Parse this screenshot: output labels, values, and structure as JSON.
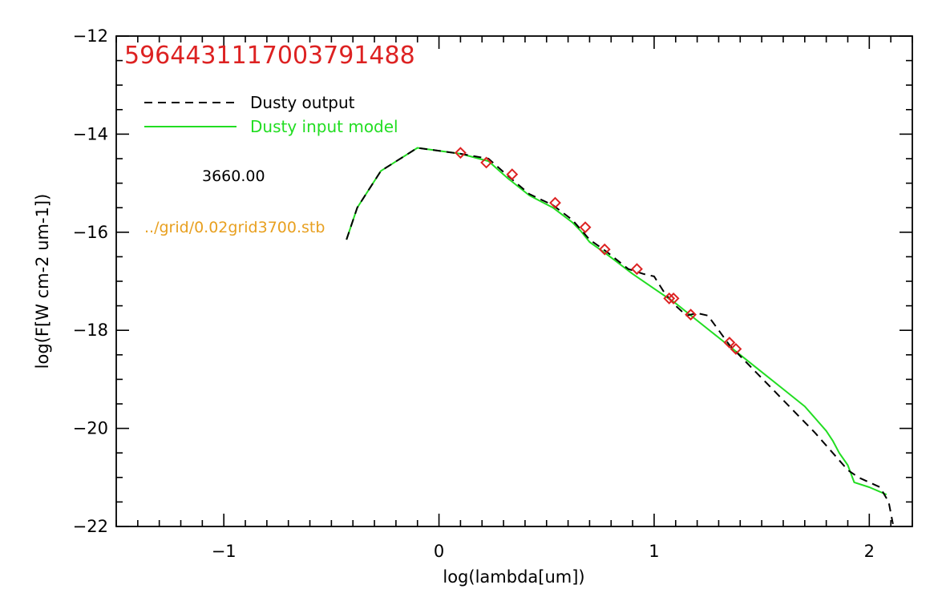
{
  "chart_data": {
    "type": "line",
    "title": "5964431117003791488",
    "xlabel": "log(lambda[um])",
    "ylabel": "log(F[W cm-2 um-1])",
    "xlim": [
      -1.5,
      2.2
    ],
    "ylim": [
      -22,
      -12
    ],
    "xticks": [
      -1,
      0,
      1,
      2
    ],
    "xtick_labels": [
      "−1",
      "0",
      "1",
      "2"
    ],
    "yticks": [
      -22,
      -20,
      -18,
      -16,
      -14,
      -12
    ],
    "ytick_labels": [
      "−22",
      "−20",
      "−18",
      "−16",
      "−14",
      "−12"
    ],
    "grid": false,
    "legend_position": "top-left",
    "legend": [
      {
        "label": "Dusty output",
        "color": "#000000",
        "style": "dashed"
      },
      {
        "label": "Dusty input model",
        "color": "#22dd22",
        "style": "solid"
      }
    ],
    "annotations": [
      {
        "text": "3660.00",
        "color": "#000000"
      },
      {
        "text": "../grid/0.02grid3700.stb",
        "color": "#e8a020"
      }
    ],
    "series": [
      {
        "name": "Dusty input model",
        "color": "#22dd22",
        "style": "solid",
        "x": [
          -0.43,
          -0.38,
          -0.27,
          -0.1,
          0.1,
          0.23,
          0.32,
          0.42,
          0.53,
          0.62,
          0.66,
          0.7,
          0.78,
          0.9,
          1.0,
          1.1,
          1.2,
          1.3,
          1.4,
          1.5,
          1.6,
          1.7,
          1.75,
          1.8,
          1.83,
          1.86,
          1.9,
          1.93,
          2.0,
          2.08
        ],
        "y": [
          -16.15,
          -15.5,
          -14.75,
          -14.28,
          -14.4,
          -14.55,
          -14.9,
          -15.25,
          -15.5,
          -15.8,
          -15.98,
          -16.2,
          -16.45,
          -16.85,
          -17.15,
          -17.45,
          -17.8,
          -18.15,
          -18.5,
          -18.85,
          -19.2,
          -19.55,
          -19.8,
          -20.05,
          -20.25,
          -20.5,
          -20.75,
          -21.1,
          -21.2,
          -21.35
        ]
      },
      {
        "name": "Dusty output",
        "color": "#000000",
        "style": "dashed",
        "x": [
          -0.43,
          -0.38,
          -0.27,
          -0.1,
          0.1,
          0.23,
          0.32,
          0.42,
          0.53,
          0.62,
          0.66,
          0.7,
          0.78,
          0.88,
          0.95,
          1.0,
          1.05,
          1.1,
          1.15,
          1.2,
          1.25,
          1.3,
          1.35,
          1.45,
          1.55,
          1.65,
          1.75,
          1.85,
          1.9,
          1.95,
          2.05,
          2.09,
          2.11
        ],
        "y": [
          -16.15,
          -15.5,
          -14.75,
          -14.28,
          -14.4,
          -14.5,
          -14.85,
          -15.22,
          -15.45,
          -15.75,
          -15.95,
          -16.15,
          -16.4,
          -16.75,
          -16.85,
          -16.9,
          -17.25,
          -17.5,
          -17.7,
          -17.65,
          -17.7,
          -18.0,
          -18.3,
          -18.75,
          -19.2,
          -19.65,
          -20.1,
          -20.6,
          -20.85,
          -21.0,
          -21.2,
          -21.5,
          -21.95
        ]
      },
      {
        "name": "",
        "type": "scatter",
        "marker": "diamond",
        "color": "#dd2222",
        "x": [
          0.1,
          0.22,
          0.34,
          0.54,
          0.68,
          0.77,
          0.92,
          1.07,
          1.09,
          1.17,
          1.35,
          1.38
        ],
        "y": [
          -14.38,
          -14.58,
          -14.82,
          -15.4,
          -15.9,
          -16.35,
          -16.75,
          -17.35,
          -17.35,
          -17.68,
          -18.25,
          -18.38
        ]
      }
    ]
  }
}
